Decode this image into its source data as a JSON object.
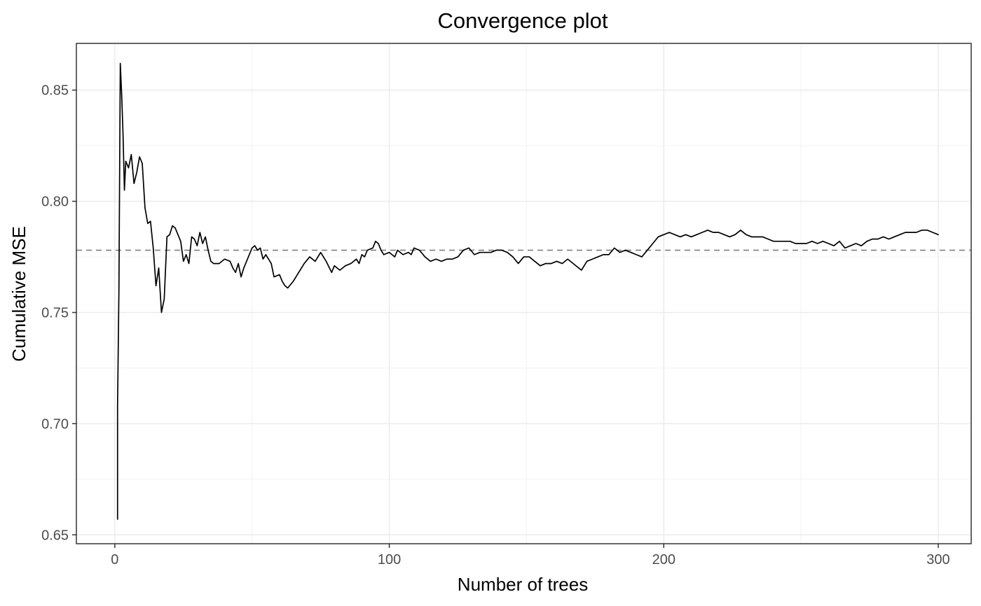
{
  "chart_data": {
    "type": "line",
    "title": "Convergence plot",
    "xlabel": "Number of trees",
    "ylabel": "Cumulative MSE",
    "xlim": [
      -14,
      312
    ],
    "ylim": [
      0.646,
      0.871
    ],
    "x_ticks": [
      0,
      100,
      200,
      300
    ],
    "x_minor_ticks": [
      50,
      150,
      250
    ],
    "y_ticks": [
      0.65,
      0.7,
      0.75,
      0.8,
      0.85
    ],
    "y_tick_labels": [
      "0.65",
      "0.70",
      "0.75",
      "0.80",
      "0.85"
    ],
    "y_minor_ticks": [
      0.675,
      0.725,
      0.775,
      0.825
    ],
    "grid": true,
    "reference_line": {
      "y": 0.778,
      "style": "dashed",
      "color": "#808080"
    },
    "series": [
      {
        "color": "#000000",
        "points": [
          [
            1,
            0.657
          ],
          [
            1,
            0.708
          ],
          [
            1.5,
            0.76
          ],
          [
            2,
            0.862
          ],
          [
            2.5,
            0.848
          ],
          [
            3,
            0.83
          ],
          [
            3.5,
            0.805
          ],
          [
            4,
            0.818
          ],
          [
            5,
            0.815
          ],
          [
            6,
            0.821
          ],
          [
            7,
            0.808
          ],
          [
            8,
            0.813
          ],
          [
            9,
            0.82
          ],
          [
            10,
            0.817
          ],
          [
            11,
            0.797
          ],
          [
            12,
            0.79
          ],
          [
            13,
            0.791
          ],
          [
            14,
            0.779
          ],
          [
            15,
            0.762
          ],
          [
            16,
            0.77
          ],
          [
            17,
            0.75
          ],
          [
            18,
            0.756
          ],
          [
            19,
            0.784
          ],
          [
            20,
            0.785
          ],
          [
            21,
            0.789
          ],
          [
            22,
            0.788
          ],
          [
            23,
            0.785
          ],
          [
            24,
            0.782
          ],
          [
            25,
            0.773
          ],
          [
            26,
            0.776
          ],
          [
            27,
            0.772
          ],
          [
            28,
            0.784
          ],
          [
            29,
            0.783
          ],
          [
            30,
            0.78
          ],
          [
            31,
            0.786
          ],
          [
            32,
            0.781
          ],
          [
            33,
            0.784
          ],
          [
            34,
            0.778
          ],
          [
            35,
            0.773
          ],
          [
            36,
            0.772
          ],
          [
            38,
            0.772
          ],
          [
            40,
            0.774
          ],
          [
            42,
            0.773
          ],
          [
            43,
            0.77
          ],
          [
            44,
            0.768
          ],
          [
            45,
            0.772
          ],
          [
            46,
            0.766
          ],
          [
            47,
            0.77
          ],
          [
            48,
            0.773
          ],
          [
            50,
            0.779
          ],
          [
            51,
            0.78
          ],
          [
            52,
            0.778
          ],
          [
            53,
            0.779
          ],
          [
            54,
            0.774
          ],
          [
            55,
            0.776
          ],
          [
            57,
            0.772
          ],
          [
            58,
            0.766
          ],
          [
            60,
            0.767
          ],
          [
            61,
            0.764
          ],
          [
            62,
            0.762
          ],
          [
            63,
            0.761
          ],
          [
            65,
            0.764
          ],
          [
            67,
            0.768
          ],
          [
            69,
            0.772
          ],
          [
            71,
            0.775
          ],
          [
            73,
            0.773
          ],
          [
            74,
            0.775
          ],
          [
            75,
            0.777
          ],
          [
            77,
            0.773
          ],
          [
            79,
            0.768
          ],
          [
            80,
            0.771
          ],
          [
            82,
            0.769
          ],
          [
            84,
            0.771
          ],
          [
            86,
            0.772
          ],
          [
            88,
            0.774
          ],
          [
            89,
            0.772
          ],
          [
            90,
            0.776
          ],
          [
            91,
            0.775
          ],
          [
            92,
            0.778
          ],
          [
            94,
            0.779
          ],
          [
            95,
            0.782
          ],
          [
            96,
            0.781
          ],
          [
            97,
            0.778
          ],
          [
            98,
            0.776
          ],
          [
            100,
            0.777
          ],
          [
            101,
            0.776
          ],
          [
            102,
            0.775
          ],
          [
            103,
            0.778
          ],
          [
            105,
            0.776
          ],
          [
            107,
            0.777
          ],
          [
            108,
            0.776
          ],
          [
            109,
            0.779
          ],
          [
            111,
            0.778
          ],
          [
            113,
            0.775
          ],
          [
            115,
            0.773
          ],
          [
            117,
            0.774
          ],
          [
            119,
            0.773
          ],
          [
            121,
            0.774
          ],
          [
            123,
            0.774
          ],
          [
            125,
            0.775
          ],
          [
            127,
            0.778
          ],
          [
            129,
            0.779
          ],
          [
            131,
            0.776
          ],
          [
            133,
            0.777
          ],
          [
            135,
            0.777
          ],
          [
            137,
            0.777
          ],
          [
            139,
            0.778
          ],
          [
            141,
            0.778
          ],
          [
            143,
            0.777
          ],
          [
            145,
            0.775
          ],
          [
            147,
            0.772
          ],
          [
            149,
            0.775
          ],
          [
            151,
            0.775
          ],
          [
            153,
            0.773
          ],
          [
            155,
            0.771
          ],
          [
            157,
            0.772
          ],
          [
            159,
            0.772
          ],
          [
            161,
            0.773
          ],
          [
            163,
            0.772
          ],
          [
            165,
            0.774
          ],
          [
            167,
            0.772
          ],
          [
            169,
            0.77
          ],
          [
            170,
            0.769
          ],
          [
            172,
            0.773
          ],
          [
            174,
            0.774
          ],
          [
            176,
            0.775
          ],
          [
            178,
            0.776
          ],
          [
            180,
            0.776
          ],
          [
            182,
            0.779
          ],
          [
            184,
            0.777
          ],
          [
            186,
            0.778
          ],
          [
            188,
            0.777
          ],
          [
            190,
            0.776
          ],
          [
            192,
            0.775
          ],
          [
            194,
            0.778
          ],
          [
            196,
            0.781
          ],
          [
            198,
            0.784
          ],
          [
            200,
            0.785
          ],
          [
            202,
            0.786
          ],
          [
            204,
            0.785
          ],
          [
            206,
            0.784
          ],
          [
            208,
            0.785
          ],
          [
            210,
            0.784
          ],
          [
            212,
            0.785
          ],
          [
            214,
            0.786
          ],
          [
            216,
            0.787
          ],
          [
            218,
            0.786
          ],
          [
            220,
            0.786
          ],
          [
            222,
            0.785
          ],
          [
            224,
            0.784
          ],
          [
            226,
            0.785
          ],
          [
            228,
            0.787
          ],
          [
            230,
            0.785
          ],
          [
            232,
            0.784
          ],
          [
            234,
            0.784
          ],
          [
            236,
            0.784
          ],
          [
            238,
            0.783
          ],
          [
            240,
            0.782
          ],
          [
            242,
            0.782
          ],
          [
            244,
            0.782
          ],
          [
            246,
            0.782
          ],
          [
            248,
            0.781
          ],
          [
            250,
            0.781
          ],
          [
            252,
            0.781
          ],
          [
            254,
            0.782
          ],
          [
            256,
            0.781
          ],
          [
            258,
            0.782
          ],
          [
            260,
            0.781
          ],
          [
            262,
            0.78
          ],
          [
            264,
            0.782
          ],
          [
            266,
            0.779
          ],
          [
            268,
            0.78
          ],
          [
            270,
            0.781
          ],
          [
            272,
            0.78
          ],
          [
            274,
            0.782
          ],
          [
            276,
            0.783
          ],
          [
            278,
            0.783
          ],
          [
            280,
            0.784
          ],
          [
            282,
            0.783
          ],
          [
            284,
            0.784
          ],
          [
            286,
            0.785
          ],
          [
            288,
            0.786
          ],
          [
            290,
            0.786
          ],
          [
            292,
            0.786
          ],
          [
            294,
            0.787
          ],
          [
            296,
            0.787
          ],
          [
            298,
            0.786
          ],
          [
            300,
            0.785
          ]
        ]
      }
    ]
  }
}
